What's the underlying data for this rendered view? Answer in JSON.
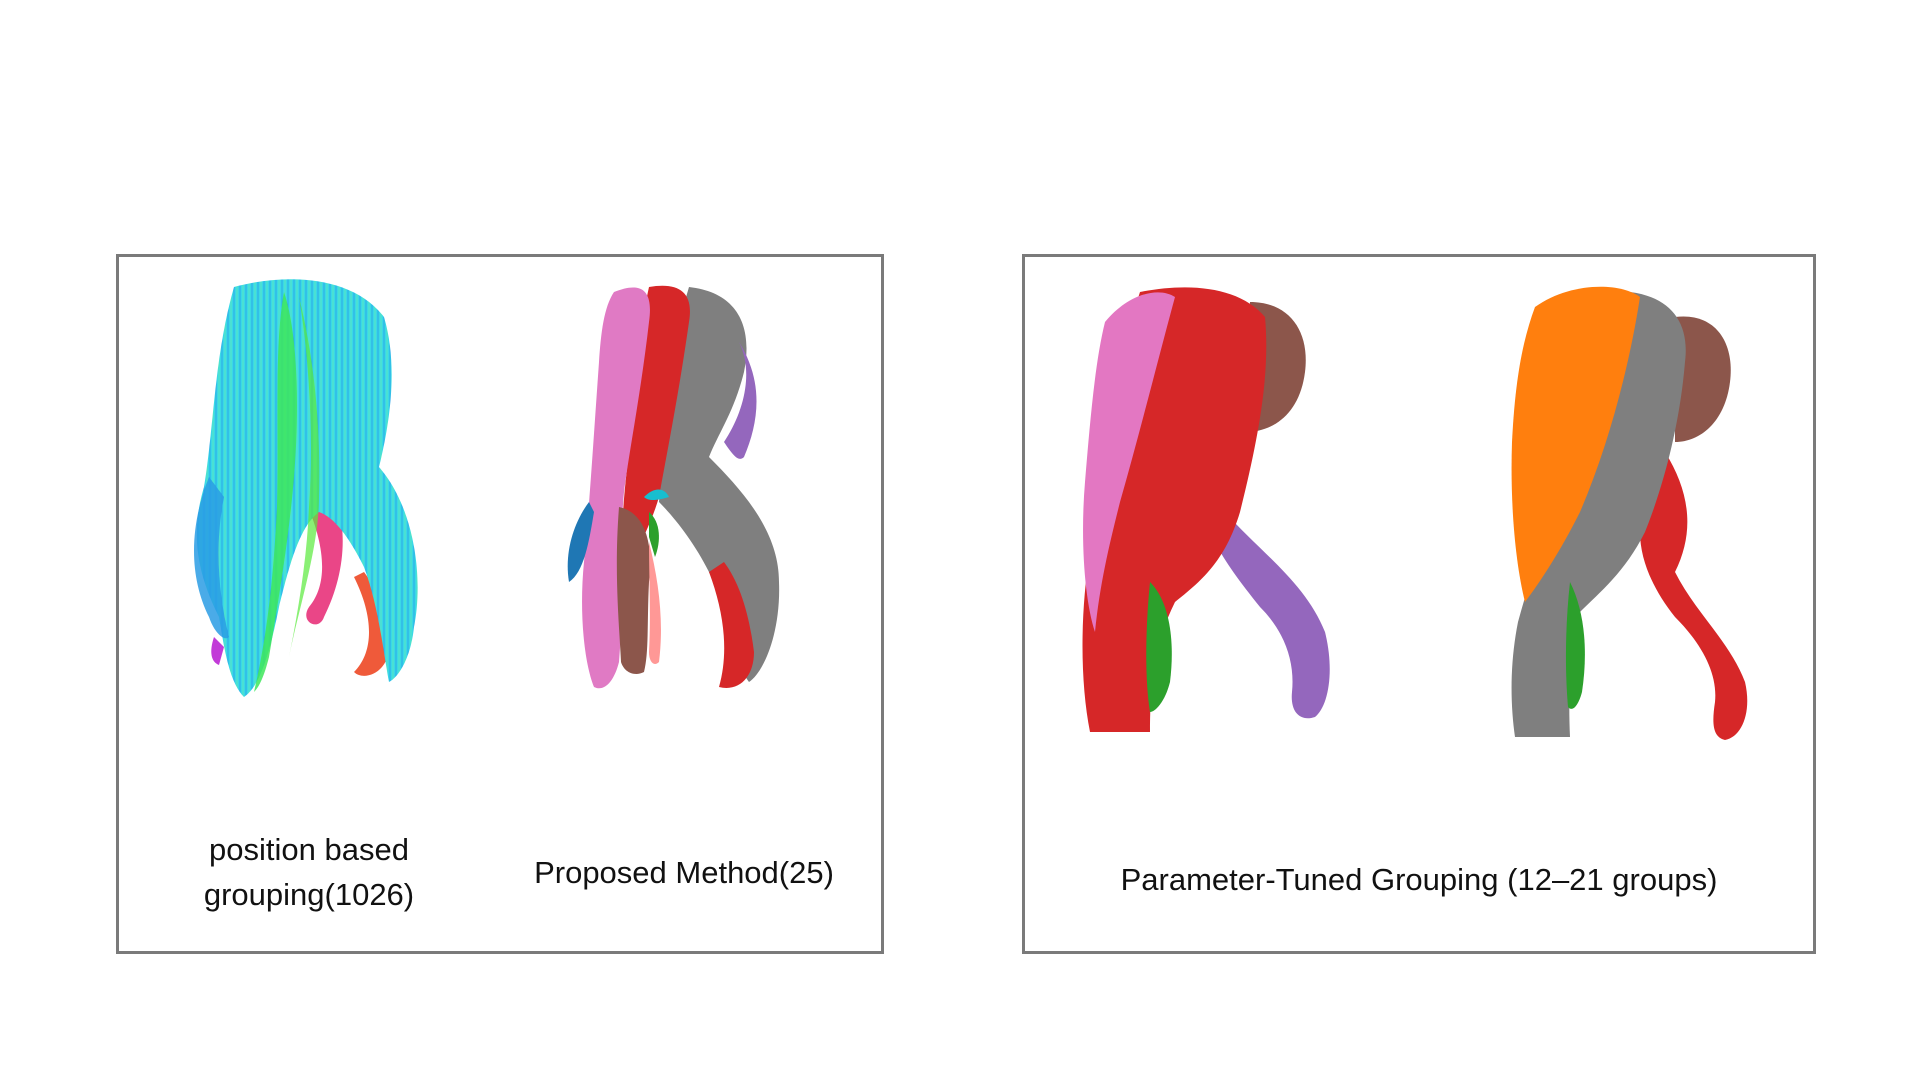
{
  "figure": {
    "left_panel": {
      "position_based": {
        "caption_line1": "position based",
        "caption_line2": "grouping(1026)",
        "palette": [
          "#35e0e6",
          "#2fd7ee",
          "#3ee65a",
          "#58e93a",
          "#2a9ce4",
          "#e8327a",
          "#ef5a3a",
          "#c23bd8",
          "#f2c23a"
        ]
      },
      "proposed_method": {
        "caption": "Proposed Method(25)",
        "palette": [
          "#e07ac4",
          "#d62728",
          "#7f7f7f",
          "#9467bd",
          "#8c564b",
          "#1f77b4",
          "#ff9896",
          "#2ca02c",
          "#17becf"
        ]
      }
    },
    "right_panel": {
      "caption": "Parameter-Tuned Grouping (12–21 groups)",
      "variant_a": {
        "palette": [
          "#e377c2",
          "#d62728",
          "#8c564b",
          "#9467bd",
          "#2ca02c"
        ]
      },
      "variant_b": {
        "palette": [
          "#ff7f0e",
          "#7f7f7f",
          "#8c564b",
          "#d62728",
          "#2ca02c"
        ]
      }
    }
  }
}
